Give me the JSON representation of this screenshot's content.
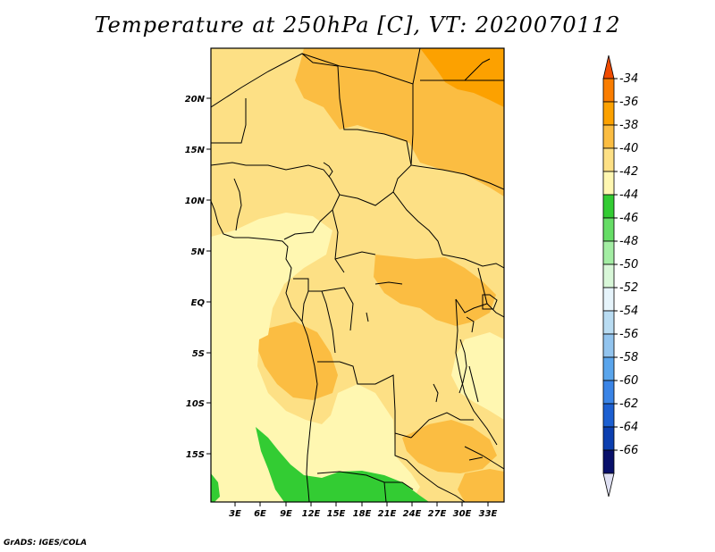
{
  "title": "Temperature at 250hPa [C], VT: 2020070112",
  "credit": "GrADS: IGES/COLA",
  "map": {
    "lat_labels": [
      "20N",
      "15N",
      "10N",
      "5N",
      "EQ",
      "5S",
      "10S",
      "15S"
    ],
    "lon_labels": [
      "3E",
      "6E",
      "9E",
      "12E",
      "15E",
      "18E",
      "21E",
      "24E",
      "27E",
      "30E",
      "33E"
    ]
  },
  "colorbar": {
    "labels": [
      "-34",
      "-36",
      "-38",
      "-40",
      "-42",
      "-44",
      "-46",
      "-48",
      "-50",
      "-52",
      "-54",
      "-56",
      "-58",
      "-60",
      "-62",
      "-64",
      "-66"
    ],
    "colors": [
      "#f04b00",
      "#fa7d00",
      "#fca100",
      "#fbbd42",
      "#fde085",
      "#fff7b1",
      "#33cc33",
      "#66dd66",
      "#a3eda3",
      "#d8f7d8",
      "#e6f4fb",
      "#b9dcf2",
      "#92c4ee",
      "#5aa5ec",
      "#3a84e6",
      "#1c5fd1",
      "#0c3fb0",
      "#08106a",
      "#dfe0f3"
    ]
  },
  "colors": {
    "c40": "#fde085",
    "c38": "#fbbd42",
    "c42": "#fff7b1",
    "c44": "#33cc33",
    "c36": "#fca100"
  }
}
